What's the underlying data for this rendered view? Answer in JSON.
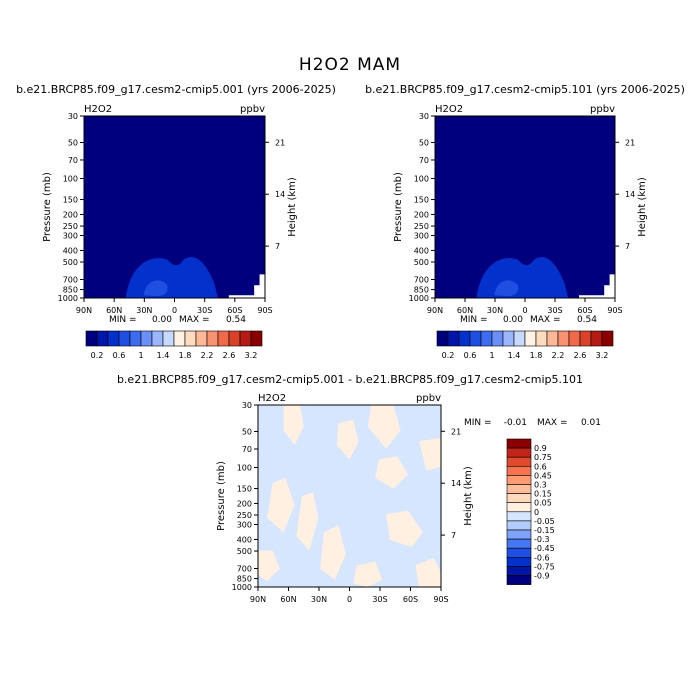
{
  "figure": {
    "title": "H2O2 MAM"
  },
  "colors": {
    "abs_scale": [
      "#00007f",
      "#0016a8",
      "#0431cc",
      "#1e4fe0",
      "#3d6cf0",
      "#6a8ff7",
      "#9cb6fb",
      "#c8d9fe",
      "#fff3e6",
      "#ffdcc0",
      "#fdb898",
      "#f99271",
      "#f06a4a",
      "#d9412a",
      "#b51b14",
      "#8a0000"
    ],
    "diff_scale": [
      "#00007f",
      "#0015a6",
      "#0430cc",
      "#1f50e3",
      "#4678f3",
      "#7fa3fa",
      "#b2ccfd",
      "#d6e6ff",
      "#fff0e2",
      "#ffd9bd",
      "#ffbd9a",
      "#ff9a72",
      "#f5744f",
      "#e04a2f",
      "#c0241a",
      "#8a0000"
    ]
  },
  "chart_data": [
    {
      "type": "contour",
      "panel": "top-left",
      "title": "b.e21.BRCP85.f09_g17.cesm2-cmip5.001 (yrs 2006-2025)",
      "field_label": "H2O2",
      "units": "ppbv",
      "xlabel": "",
      "ylabel": "Pressure (mb)",
      "y2label": "Height (km)",
      "x_ticks": [
        "90N",
        "60N",
        "30N",
        "0",
        "30S",
        "60S",
        "90S"
      ],
      "y_ticks": [
        "30",
        "50",
        "70",
        "100",
        "150",
        "200",
        "250",
        "300",
        "400",
        "500",
        "700",
        "850",
        "1000"
      ],
      "y2_ticks": [
        "21",
        "14",
        "7"
      ],
      "stats": {
        "min_label": "MIN =",
        "min": "0.00",
        "max_label": "MAX =",
        "max": "0.54"
      },
      "colorbar_labels": [
        "0.2",
        "0.6",
        "1",
        "1.4",
        "1.8",
        "2.2",
        "2.6",
        "3.2"
      ]
    },
    {
      "type": "contour",
      "panel": "top-right",
      "title": "b.e21.BRCP85.f09_g17.cesm2-cmip5.101 (yrs 2006-2025)",
      "field_label": "H2O2",
      "units": "ppbv",
      "xlabel": "",
      "ylabel": "Pressure (mb)",
      "y2label": "Height (km)",
      "x_ticks": [
        "90N",
        "60N",
        "30N",
        "0",
        "30S",
        "60S",
        "90S"
      ],
      "y_ticks": [
        "30",
        "50",
        "70",
        "100",
        "150",
        "200",
        "250",
        "300",
        "400",
        "500",
        "700",
        "850",
        "1000"
      ],
      "y2_ticks": [
        "21",
        "14",
        "7"
      ],
      "stats": {
        "min_label": "MIN =",
        "min": "0.00",
        "max_label": "MAX =",
        "max": "0.54"
      },
      "colorbar_labels": [
        "0.2",
        "0.6",
        "1",
        "1.4",
        "1.8",
        "2.2",
        "2.6",
        "3.2"
      ]
    },
    {
      "type": "contour",
      "panel": "bottom",
      "title": "b.e21.BRCP85.f09_g17.cesm2-cmip5.001 - b.e21.BRCP85.f09_g17.cesm2-cmip5.101",
      "field_label": "H2O2",
      "units": "ppbv",
      "xlabel": "",
      "ylabel": "Pressure (mb)",
      "y2label": "Height (km)",
      "x_ticks": [
        "90N",
        "60N",
        "30N",
        "0",
        "30S",
        "60S",
        "90S"
      ],
      "y_ticks": [
        "30",
        "50",
        "70",
        "100",
        "150",
        "200",
        "250",
        "300",
        "400",
        "500",
        "700",
        "850",
        "1000"
      ],
      "y2_ticks": [
        "21",
        "14",
        "7"
      ],
      "stats": {
        "min_label": "MIN =",
        "min": "-0.01",
        "max_label": "MAX =",
        "max": "0.01"
      },
      "colorbar_labels": [
        "0.9",
        "0.75",
        "0.6",
        "0.45",
        "0.3",
        "0.15",
        "0.05",
        "0",
        "-0.05",
        "-0.15",
        "-0.3",
        "-0.45",
        "-0.6",
        "-0.75",
        "-0.9"
      ]
    }
  ]
}
